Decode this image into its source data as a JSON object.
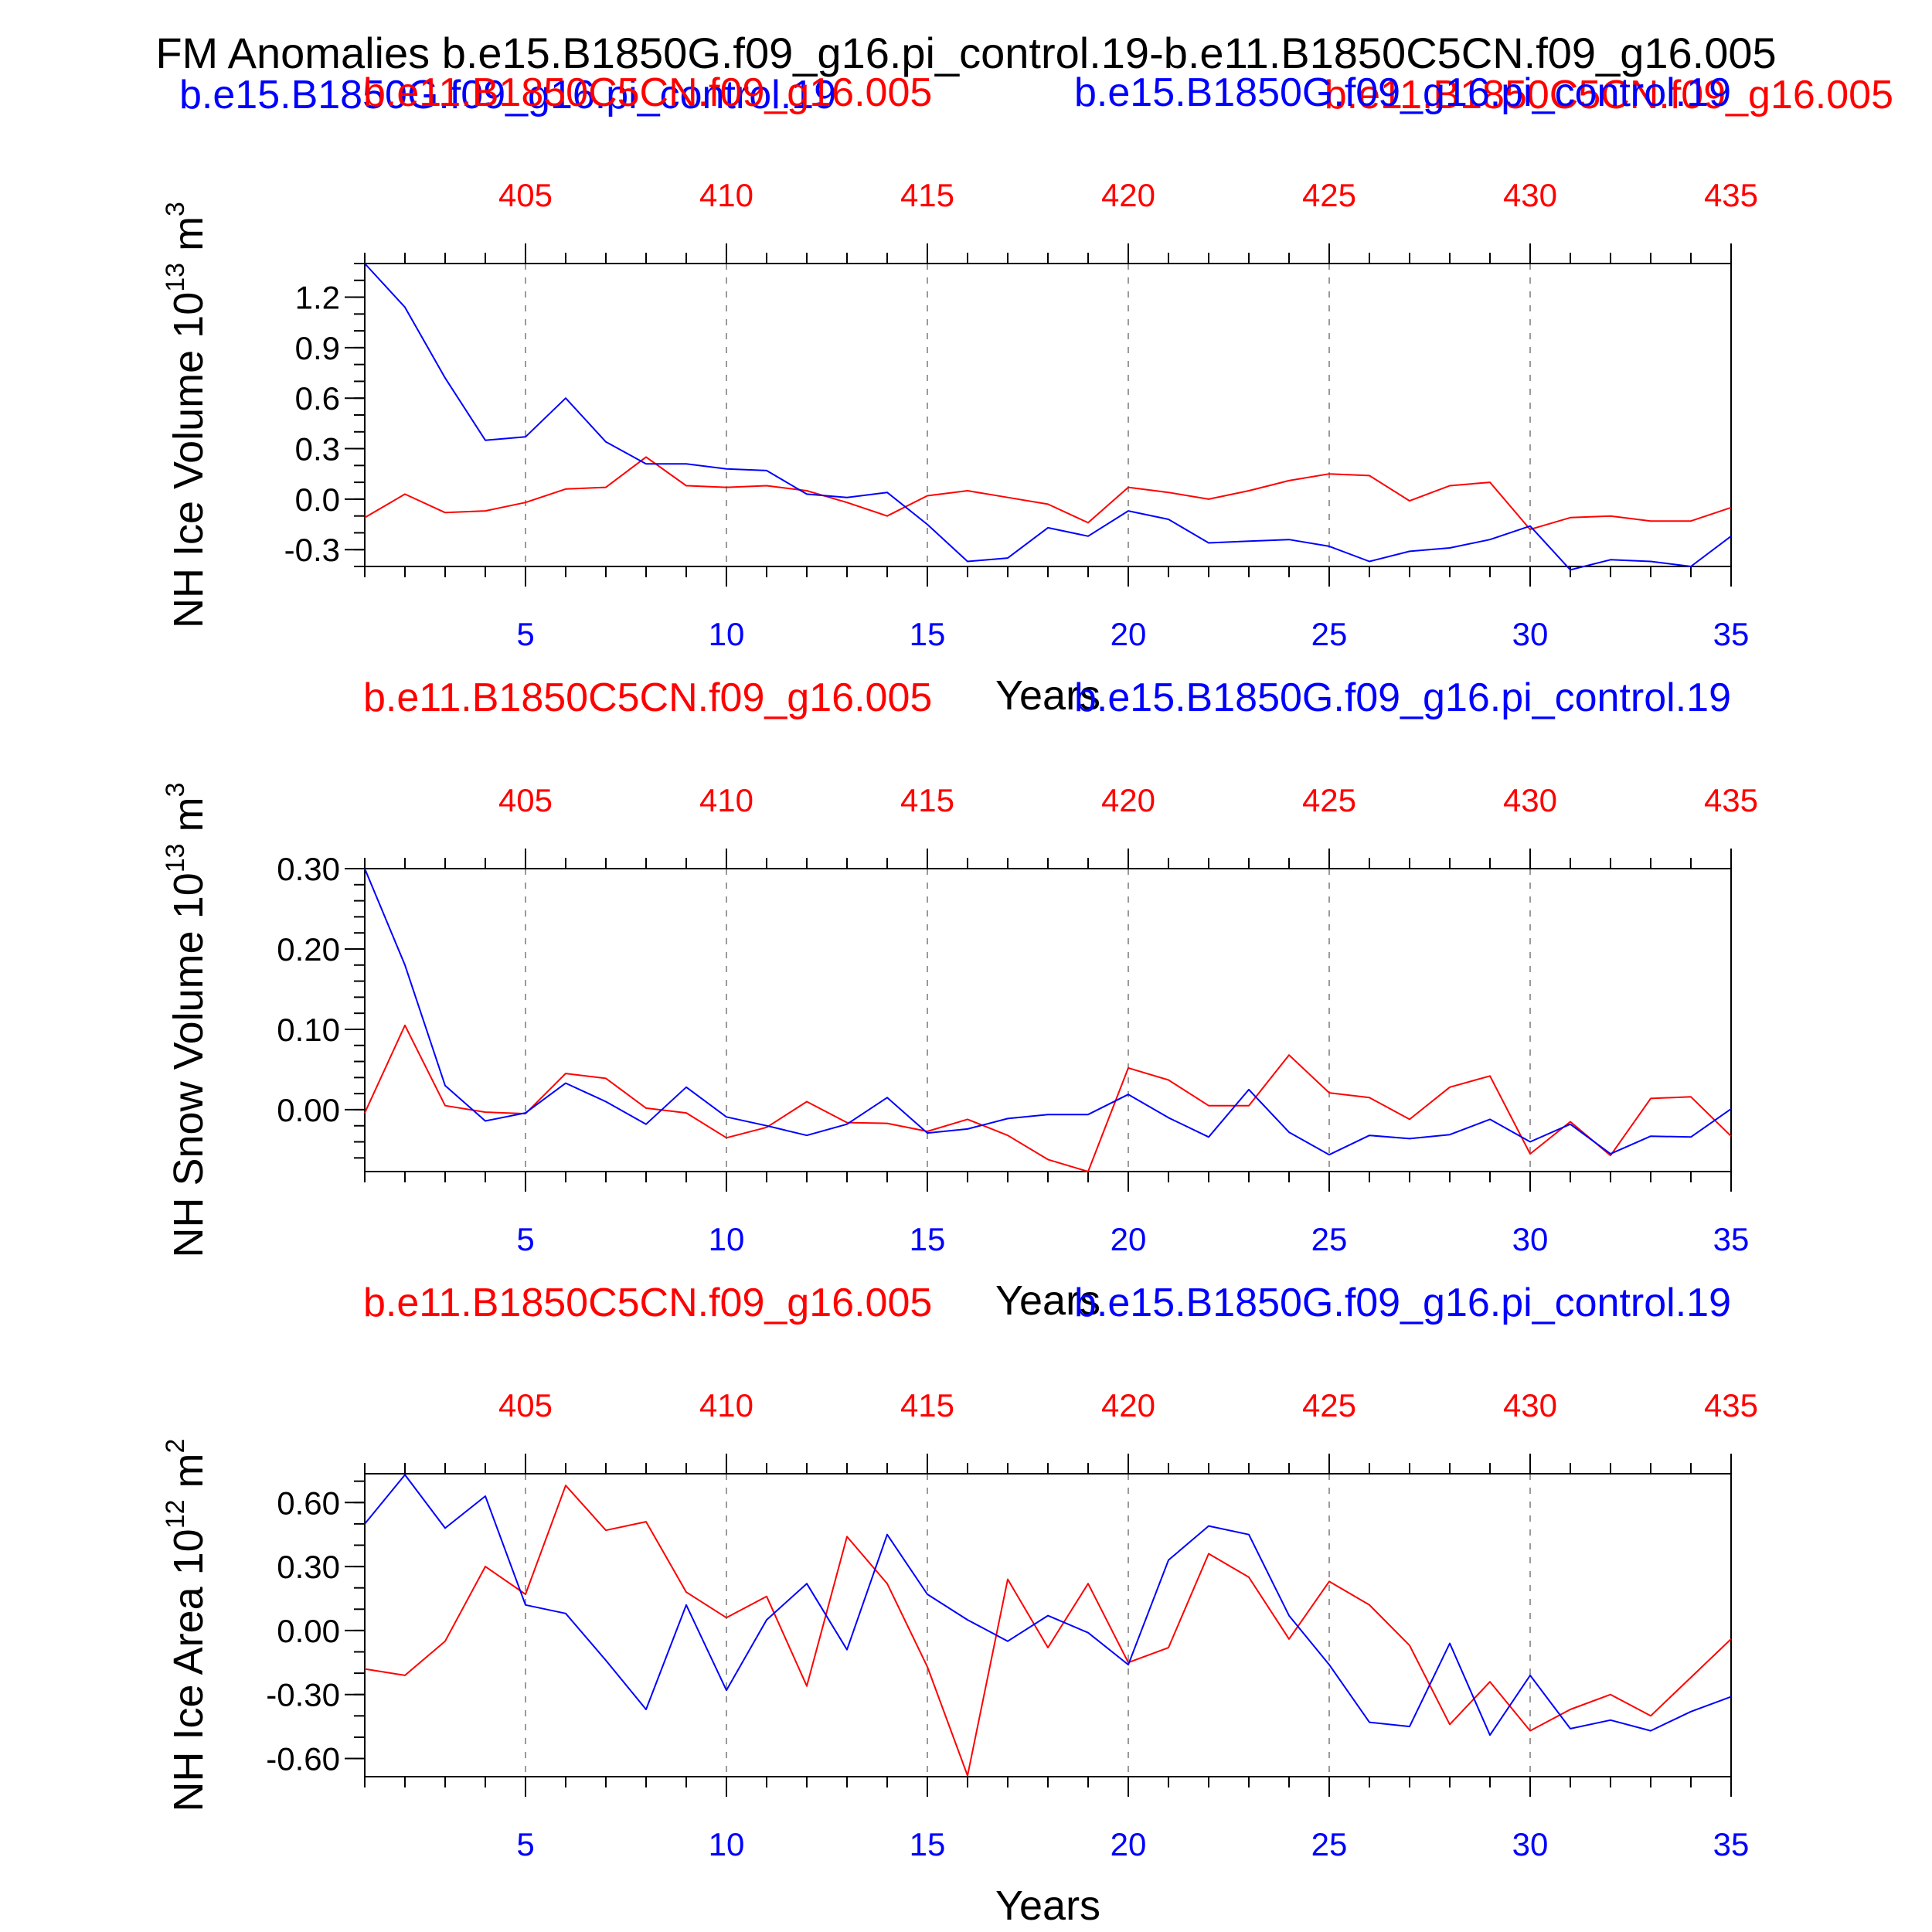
{
  "main_title": "FM Anomalies b.e15.B1850G.f09_g16.pi_control.19-b.e11.B1850C5CN.f09_g16.005",
  "header": {
    "left_case": "b.e15.B1850G.f09_g16.pi_control.19",
    "right_case": "b.e11.B1850C5CN.f09_g16.005"
  },
  "colors": {
    "case1": "#0000ff",
    "case2": "#ff0000",
    "axis": "#000000",
    "grid": "#9a9a9a"
  },
  "chart_data": [
    {
      "type": "line",
      "title_left": "b.e11.B1850C5CN.f09_g16.005",
      "title_right": "b.e15.B1850G.f09_g16.pi_control.19",
      "ylabel": "NH Ice Volume 10",
      "ylabel_sup": "13",
      "ylabel_unit": "m",
      "ylabel_unit_sup": "3",
      "xlabel": "Years",
      "xlim": [
        1,
        35
      ],
      "ylim": [
        -0.4,
        1.4
      ],
      "yticks": [
        1.2,
        0.9,
        0.6,
        0.3,
        0.0,
        -0.3
      ],
      "ytick_labels": [
        "1.2",
        "0.9",
        "0.6",
        "0.3",
        "0.0",
        "-0.3"
      ],
      "yminor_step": 0.1,
      "xticks_bottom": [
        "5",
        "10",
        "15",
        "20",
        "25",
        "30",
        "35"
      ],
      "xticks_top": [
        "405",
        "410",
        "415",
        "420",
        "425",
        "430",
        "435"
      ],
      "grid": "vertical dashed",
      "series": [
        {
          "color": "#0000ff",
          "x": [
            1,
            2,
            3,
            4,
            5,
            6,
            7,
            8,
            9,
            10,
            11,
            12,
            13,
            14,
            15,
            16,
            17,
            18,
            19,
            20,
            21,
            22,
            23,
            24,
            25,
            26,
            27,
            28,
            29,
            30,
            31,
            32,
            33,
            34,
            35
          ],
          "values": [
            1.4,
            1.14,
            0.72,
            0.35,
            0.37,
            0.6,
            0.34,
            0.21,
            0.21,
            0.18,
            0.17,
            0.03,
            0.01,
            0.04,
            -0.15,
            -0.37,
            -0.35,
            -0.17,
            -0.22,
            -0.07,
            -0.12,
            -0.26,
            -0.25,
            -0.24,
            -0.28,
            -0.37,
            -0.31,
            -0.29,
            -0.24,
            -0.16,
            -0.42,
            -0.36,
            -0.37,
            -0.4,
            -0.22
          ]
        },
        {
          "color": "#ff0000",
          "x": [
            1,
            2,
            3,
            4,
            5,
            6,
            7,
            8,
            9,
            10,
            11,
            12,
            13,
            14,
            15,
            16,
            17,
            18,
            19,
            20,
            21,
            22,
            23,
            24,
            25,
            26,
            27,
            28,
            29,
            30,
            31,
            32,
            33,
            34,
            35
          ],
          "values": [
            -0.11,
            0.03,
            -0.08,
            -0.07,
            -0.02,
            0.06,
            0.07,
            0.25,
            0.08,
            0.07,
            0.08,
            0.05,
            -0.02,
            -0.1,
            0.02,
            0.05,
            0.01,
            -0.03,
            -0.14,
            0.07,
            0.04,
            0.0,
            0.05,
            0.11,
            0.15,
            0.14,
            -0.01,
            0.08,
            0.1,
            -0.18,
            -0.11,
            -0.1,
            -0.13,
            -0.13,
            -0.05
          ]
        }
      ]
    },
    {
      "type": "line",
      "title_left": "b.e11.B1850C5CN.f09_g16.005",
      "title_right": "b.e15.B1850G.f09_g16.pi_control.19",
      "ylabel": "NH Snow Volume 10",
      "ylabel_sup": "13",
      "ylabel_unit": "m",
      "ylabel_unit_sup": "3",
      "xlabel": "Years",
      "xlim": [
        1,
        35
      ],
      "ylim": [
        -0.077,
        0.3
      ],
      "yticks": [
        0.3,
        0.2,
        0.1,
        0.0
      ],
      "ytick_labels": [
        "0.30",
        "0.20",
        "0.10",
        "0.00"
      ],
      "yminor_step": 0.02,
      "xticks_bottom": [
        "5",
        "10",
        "15",
        "20",
        "25",
        "30",
        "35"
      ],
      "xticks_top": [
        "405",
        "410",
        "415",
        "420",
        "425",
        "430",
        "435"
      ],
      "grid": "vertical dashed",
      "series": [
        {
          "color": "#0000ff",
          "x": [
            1,
            2,
            3,
            4,
            5,
            6,
            7,
            8,
            9,
            10,
            11,
            12,
            13,
            14,
            15,
            16,
            17,
            18,
            19,
            20,
            21,
            22,
            23,
            24,
            25,
            26,
            27,
            28,
            29,
            30,
            31,
            32,
            33,
            34,
            35
          ],
          "values": [
            0.3,
            0.18,
            0.03,
            -0.014,
            -0.004,
            0.033,
            0.01,
            -0.018,
            0.028,
            -0.009,
            -0.02,
            -0.032,
            -0.018,
            0.015,
            -0.029,
            -0.024,
            -0.011,
            -0.006,
            -0.006,
            0.019,
            -0.01,
            -0.034,
            0.025,
            -0.028,
            -0.056,
            -0.032,
            -0.036,
            -0.031,
            -0.012,
            -0.04,
            -0.018,
            -0.055,
            -0.033,
            -0.034,
            0.001
          ]
        },
        {
          "color": "#ff0000",
          "x": [
            1,
            2,
            3,
            4,
            5,
            6,
            7,
            8,
            9,
            10,
            11,
            12,
            13,
            14,
            15,
            16,
            17,
            18,
            19,
            20,
            21,
            22,
            23,
            24,
            25,
            26,
            27,
            28,
            29,
            30,
            31,
            32,
            33,
            34,
            35
          ],
          "values": [
            -0.004,
            0.105,
            0.005,
            -0.003,
            -0.005,
            0.045,
            0.039,
            0.002,
            -0.004,
            -0.035,
            -0.022,
            0.01,
            -0.016,
            -0.017,
            -0.027,
            -0.012,
            -0.032,
            -0.062,
            -0.077,
            0.052,
            0.037,
            0.005,
            0.005,
            0.068,
            0.021,
            0.015,
            -0.012,
            0.028,
            0.042,
            -0.055,
            -0.015,
            -0.057,
            0.014,
            0.016,
            -0.033
          ]
        }
      ]
    },
    {
      "type": "line",
      "title_left": "b.e11.B1850C5CN.f09_g16.005",
      "title_right": "b.e15.B1850G.f09_g16.pi_control.19",
      "ylabel": "NH Ice Area 10",
      "ylabel_sup": "12",
      "ylabel_unit": "m",
      "ylabel_unit_sup": "2",
      "xlabel": "Years",
      "xlim": [
        1,
        35
      ],
      "ylim": [
        -0.685,
        0.735
      ],
      "yticks": [
        0.6,
        0.3,
        0.0,
        -0.3,
        -0.6
      ],
      "ytick_labels": [
        "0.60",
        "0.30",
        "0.00",
        "-0.30",
        "-0.60"
      ],
      "yminor_step": 0.1,
      "xticks_bottom": [
        "5",
        "10",
        "15",
        "20",
        "25",
        "30",
        "35"
      ],
      "xticks_top": [
        "405",
        "410",
        "415",
        "420",
        "425",
        "430",
        "435"
      ],
      "grid": "vertical dashed",
      "series": [
        {
          "color": "#0000ff",
          "x": [
            1,
            2,
            3,
            4,
            5,
            6,
            7,
            8,
            9,
            10,
            11,
            12,
            13,
            14,
            15,
            16,
            17,
            18,
            19,
            20,
            21,
            22,
            23,
            24,
            25,
            26,
            27,
            28,
            29,
            30,
            31,
            32,
            33,
            34,
            35
          ],
          "values": [
            0.5,
            0.73,
            0.48,
            0.63,
            0.12,
            0.08,
            -0.14,
            -0.37,
            0.12,
            -0.28,
            0.05,
            0.22,
            -0.09,
            0.45,
            0.17,
            0.05,
            -0.05,
            0.07,
            -0.01,
            -0.16,
            0.33,
            0.49,
            0.45,
            0.07,
            -0.16,
            -0.43,
            -0.45,
            -0.06,
            -0.49,
            -0.21,
            -0.46,
            -0.42,
            -0.47,
            -0.38,
            -0.31
          ]
        },
        {
          "color": "#ff0000",
          "x": [
            1,
            2,
            3,
            4,
            5,
            6,
            7,
            8,
            9,
            10,
            11,
            12,
            13,
            14,
            15,
            16,
            17,
            18,
            19,
            20,
            21,
            22,
            23,
            24,
            25,
            26,
            27,
            28,
            29,
            30,
            31,
            32,
            33,
            34,
            35
          ],
          "values": [
            -0.18,
            -0.21,
            -0.05,
            0.3,
            0.17,
            0.68,
            0.47,
            0.51,
            0.18,
            0.06,
            0.16,
            -0.26,
            0.44,
            0.22,
            -0.17,
            -0.68,
            0.24,
            -0.08,
            0.22,
            -0.15,
            -0.08,
            0.36,
            0.25,
            -0.04,
            0.23,
            0.12,
            -0.07,
            -0.44,
            -0.24,
            -0.47,
            -0.37,
            -0.3,
            -0.4,
            -0.22,
            -0.04
          ]
        }
      ]
    }
  ]
}
